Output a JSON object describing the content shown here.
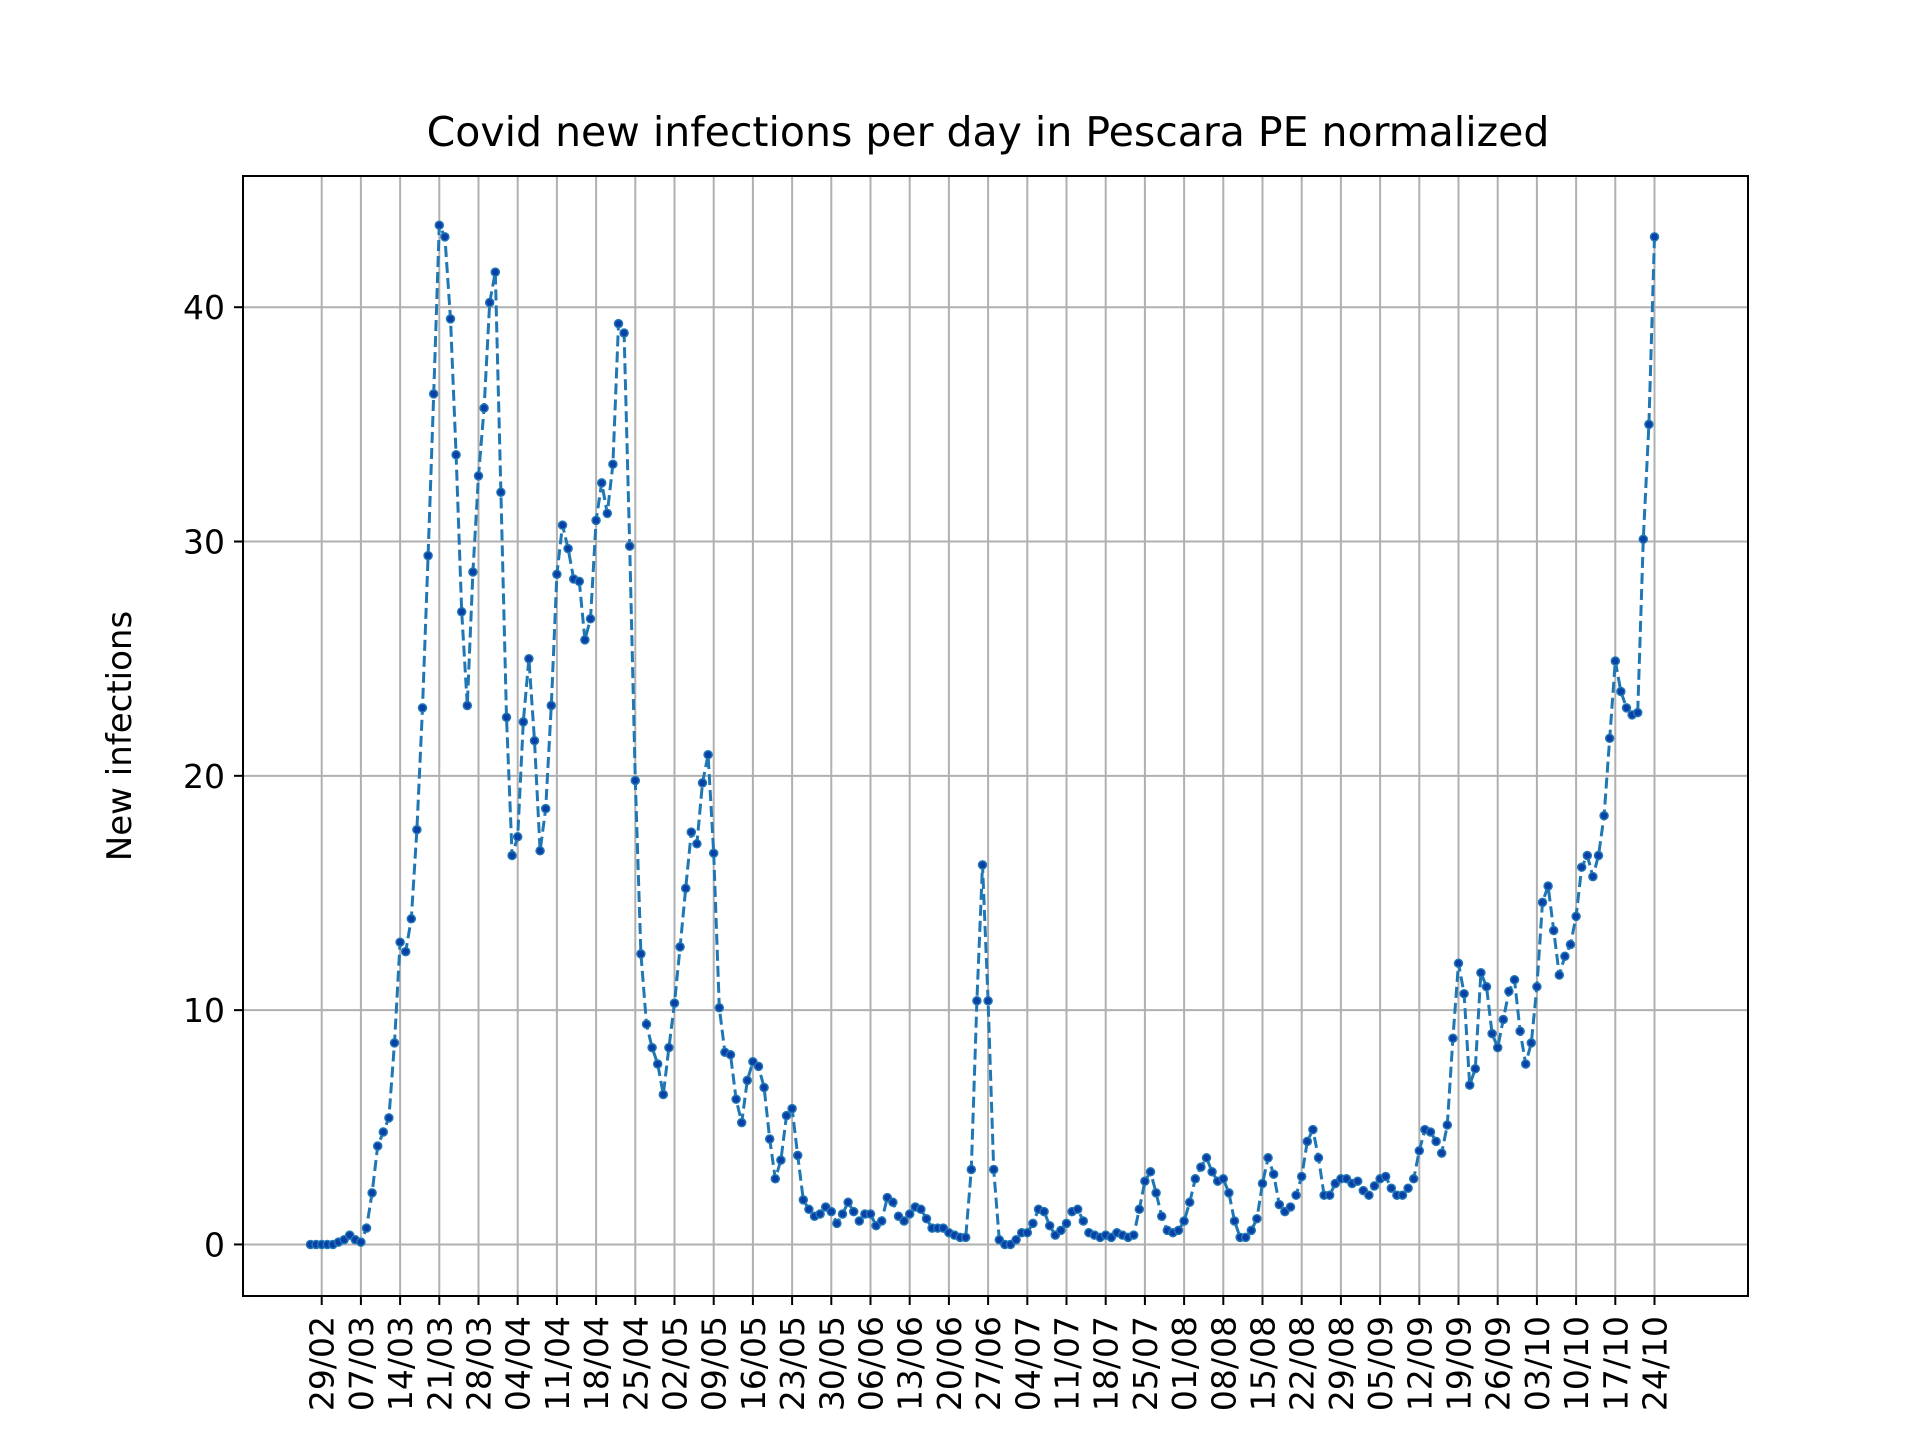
{
  "chart_data": {
    "type": "line",
    "title": "Covid new infections per day in Pescara PE normalized",
    "xlabel": "",
    "ylabel": "New infections",
    "ylim": [
      -2.2,
      45.6
    ],
    "yticks": [
      0,
      10,
      20,
      30,
      40
    ],
    "grid": true,
    "legend": "none",
    "start_date": "2020-02-27",
    "date_format": "dd/mm",
    "xtick_labels": [
      "29/02",
      "07/03",
      "14/03",
      "21/03",
      "28/03",
      "04/04",
      "11/04",
      "18/04",
      "25/04",
      "02/05",
      "09/05",
      "16/05",
      "23/05",
      "30/05",
      "06/06",
      "13/06",
      "20/06",
      "27/06",
      "04/07",
      "11/07",
      "18/07",
      "25/07",
      "01/08",
      "08/08",
      "15/08",
      "22/08",
      "29/08",
      "05/09",
      "12/09",
      "19/09",
      "26/09",
      "03/10",
      "10/10",
      "17/10",
      "24/10"
    ],
    "series": [
      {
        "color": "#1f77b4",
        "marker_color": "#0a3fa8",
        "line_style": "dashed",
        "values": [
          0,
          0,
          0,
          0,
          0,
          0.1,
          0.2,
          0.4,
          0.2,
          0.1,
          0.7,
          2.2,
          4.2,
          4.8,
          5.4,
          8.6,
          12.9,
          12.5,
          13.9,
          17.7,
          22.9,
          29.4,
          36.3,
          43.5,
          43,
          39.5,
          33.7,
          27,
          23,
          28.7,
          32.8,
          35.7,
          40.2,
          41.5,
          32.1,
          22.5,
          16.6,
          17.4,
          22.3,
          25,
          21.5,
          16.8,
          18.6,
          23,
          28.6,
          30.7,
          29.7,
          28.4,
          28.3,
          25.8,
          26.7,
          30.9,
          32.5,
          31.2,
          33.3,
          39.3,
          38.9,
          29.8,
          19.8,
          12.4,
          9.4,
          8.4,
          7.7,
          6.4,
          8.4,
          10.3,
          12.7,
          15.2,
          17.6,
          17.1,
          19.7,
          20.9,
          16.7,
          10.1,
          8.2,
          8.1,
          6.2,
          5.2,
          7,
          7.8,
          7.6,
          6.7,
          4.5,
          2.8,
          3.6,
          5.5,
          5.8,
          3.8,
          1.9,
          1.5,
          1.2,
          1.3,
          1.6,
          1.4,
          0.9,
          1.3,
          1.8,
          1.4,
          1,
          1.3,
          1.3,
          0.8,
          1,
          2,
          1.8,
          1.2,
          1,
          1.3,
          1.6,
          1.5,
          1.1,
          0.7,
          0.7,
          0.7,
          0.5,
          0.4,
          0.3,
          0.3,
          3.2,
          10.4,
          16.2,
          10.4,
          3.2,
          0.2,
          0,
          0,
          0.2,
          0.5,
          0.5,
          0.9,
          1.5,
          1.4,
          0.8,
          0.4,
          0.6,
          0.9,
          1.4,
          1.5,
          1,
          0.5,
          0.4,
          0.3,
          0.4,
          0.3,
          0.5,
          0.4,
          0.3,
          0.4,
          1.5,
          2.7,
          3.1,
          2.2,
          1.2,
          0.6,
          0.5,
          0.6,
          1,
          1.8,
          2.8,
          3.3,
          3.7,
          3.1,
          2.7,
          2.8,
          2.2,
          1,
          0.3,
          0.3,
          0.6,
          1.1,
          2.6,
          3.7,
          3,
          1.7,
          1.4,
          1.6,
          2.1,
          2.9,
          4.4,
          4.9,
          3.7,
          2.1,
          2.1,
          2.6,
          2.8,
          2.8,
          2.6,
          2.7,
          2.3,
          2.1,
          2.5,
          2.8,
          2.9,
          2.4,
          2.1,
          2.1,
          2.4,
          2.8,
          4,
          4.9,
          4.8,
          4.4,
          3.9,
          5.1,
          8.8,
          12,
          10.7,
          6.8,
          7.5,
          11.6,
          11,
          9,
          8.4,
          9.6,
          10.8,
          11.3,
          9.1,
          7.7,
          8.6,
          11,
          14.6,
          15.3,
          13.4,
          11.5,
          12.3,
          12.8,
          14,
          16.1,
          16.6,
          15.7,
          16.6,
          18.3,
          21.6,
          24.9,
          23.6,
          22.9,
          22.6,
          22.7,
          30.1,
          35,
          43
        ]
      }
    ]
  }
}
